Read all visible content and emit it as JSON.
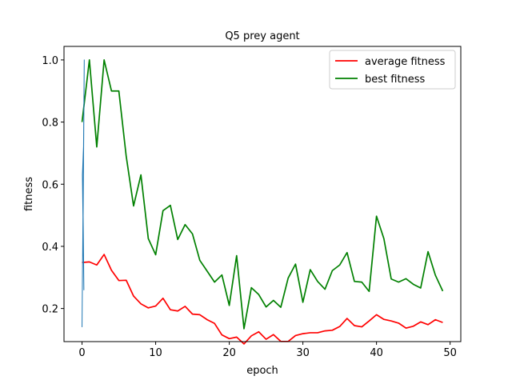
{
  "chart_data": {
    "type": "line",
    "title": "Q5 prey agent",
    "xlabel": "epoch",
    "ylabel": "fitness",
    "xlim": [
      -2.45,
      51.45
    ],
    "ylim": [
      0.0935,
      1.0435
    ],
    "xticks": [
      0,
      10,
      20,
      30,
      40,
      50
    ],
    "yticks": [
      0.2,
      0.4,
      0.6,
      0.8,
      1.0
    ],
    "xtick_labels": [
      "0",
      "10",
      "20",
      "30",
      "40",
      "50"
    ],
    "ytick_labels": [
      "0.2",
      "0.4",
      "0.6",
      "0.8",
      "1.0"
    ],
    "grid": false,
    "legend_position": "top-right",
    "series": [
      {
        "name": "average fitness",
        "color": "#ff0000",
        "x": [
          0,
          1,
          2,
          3,
          4,
          5,
          6,
          7,
          8,
          9,
          10,
          11,
          12,
          13,
          14,
          15,
          16,
          17,
          18,
          19,
          20,
          21,
          22,
          23,
          24,
          25,
          26,
          27,
          28,
          29,
          30,
          31,
          32,
          33,
          34,
          35,
          36,
          37,
          38,
          39,
          40,
          41,
          42,
          43,
          44,
          45,
          46,
          47,
          48,
          49
        ],
        "values": [
          0.348,
          0.35,
          0.34,
          0.374,
          0.323,
          0.29,
          0.291,
          0.24,
          0.215,
          0.202,
          0.208,
          0.233,
          0.196,
          0.192,
          0.207,
          0.182,
          0.18,
          0.164,
          0.152,
          0.115,
          0.103,
          0.108,
          0.086,
          0.112,
          0.125,
          0.101,
          0.116,
          0.094,
          0.094,
          0.113,
          0.119,
          0.122,
          0.122,
          0.128,
          0.13,
          0.142,
          0.168,
          0.145,
          0.141,
          0.16,
          0.18,
          0.165,
          0.16,
          0.153,
          0.137,
          0.143,
          0.157,
          0.148,
          0.164,
          0.155
        ]
      },
      {
        "name": "best fitness",
        "color": "#008000",
        "x": [
          0,
          1,
          2,
          3,
          4,
          5,
          6,
          7,
          8,
          9,
          10,
          11,
          12,
          13,
          14,
          15,
          16,
          17,
          18,
          19,
          20,
          21,
          22,
          23,
          24,
          25,
          26,
          27,
          28,
          29,
          30,
          31,
          32,
          33,
          34,
          35,
          36,
          37,
          38,
          39,
          40,
          41,
          42,
          43,
          44,
          45,
          46,
          47,
          48,
          49
        ],
        "values": [
          0.8,
          1.0,
          0.72,
          1.0,
          0.9,
          0.9,
          0.69,
          0.53,
          0.63,
          0.425,
          0.373,
          0.515,
          0.532,
          0.422,
          0.47,
          0.44,
          0.355,
          0.32,
          0.285,
          0.308,
          0.21,
          0.37,
          0.135,
          0.267,
          0.245,
          0.205,
          0.226,
          0.204,
          0.298,
          0.343,
          0.22,
          0.325,
          0.287,
          0.262,
          0.322,
          0.34,
          0.38,
          0.287,
          0.285,
          0.255,
          0.497,
          0.425,
          0.295,
          0.285,
          0.296,
          0.278,
          0.266,
          0.383,
          0.307,
          0.256
        ]
      },
      {
        "name": "",
        "color": "#1f77b4",
        "x": [
          0.0,
          0.3,
          0.1,
          0.2,
          0.05,
          0.25,
          0.15,
          0.3
        ],
        "values": [
          0.14,
          1.0,
          0.37,
          0.72,
          0.63,
          0.26,
          0.5,
          0.99
        ]
      }
    ]
  }
}
